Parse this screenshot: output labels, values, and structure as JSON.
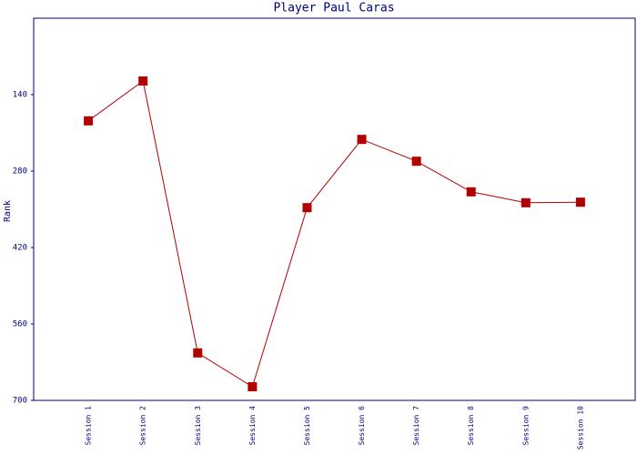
{
  "chart_data": {
    "type": "line",
    "title": "Player Paul Caras",
    "y_label": "Rank",
    "categories": [
      "Session 1",
      "Session 2",
      "Session 3",
      "Session 4",
      "Session 5",
      "Session 6",
      "Session 7",
      "Session 8",
      "Session 9",
      "Session 10"
    ],
    "series": [
      {
        "name": "Rank",
        "color": "#b00000",
        "values": [
          188,
          115,
          613,
          675,
          347,
          222,
          262,
          318,
          338,
          337
        ]
      }
    ],
    "ylim": [
      700,
      0
    ],
    "yticks": [
      140,
      280,
      420,
      560,
      700
    ],
    "grid": false
  }
}
